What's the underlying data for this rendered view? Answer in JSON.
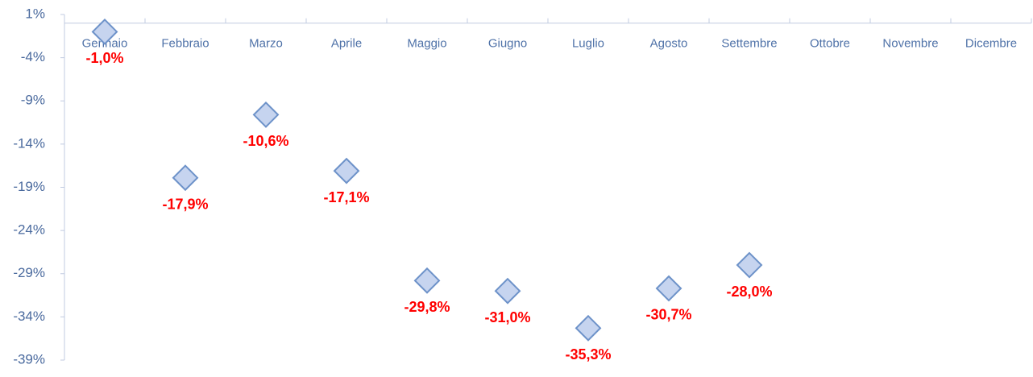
{
  "chart_data": {
    "type": "line",
    "show_line": false,
    "marker": "diamond",
    "categories": [
      "Gennaio",
      "Febbraio",
      "Marzo",
      "Aprile",
      "Maggio",
      "Giugno",
      "Luglio",
      "Agosto",
      "Settembre",
      "Ottobre",
      "Novembre",
      "Dicembre"
    ],
    "values": [
      -1.0,
      -17.9,
      -10.6,
      -17.1,
      -29.8,
      -31.0,
      -35.3,
      -30.7,
      -28.0,
      null,
      null,
      null
    ],
    "value_labels": [
      "-1,0%",
      "-17,9%",
      "-10,6%",
      "-17,1%",
      "-29,8%",
      "-31,0%",
      "-35,3%",
      "-30,7%",
      "-28,0%",
      null,
      null,
      null
    ],
    "color": "#c6d4ef",
    "label_color": "#ff0000",
    "ylim": [
      -39,
      1
    ],
    "yticks": [
      {
        "value": 1,
        "label": "1%"
      },
      {
        "value": -4,
        "label": "-4%"
      },
      {
        "value": -9,
        "label": "-9%"
      },
      {
        "value": -14,
        "label": "-14%"
      },
      {
        "value": -19,
        "label": "-19%"
      },
      {
        "value": -24,
        "label": "-24%"
      },
      {
        "value": -29,
        "label": "-29%"
      },
      {
        "value": -34,
        "label": "-34%"
      },
      {
        "value": -39,
        "label": "-39%"
      }
    ],
    "grid": false
  }
}
